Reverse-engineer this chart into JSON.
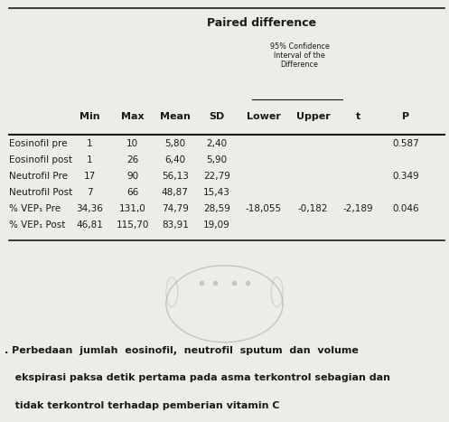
{
  "title": "Paired difference",
  "subtitle": "95% Confidence\nInterval of the\nDifference",
  "col_headers": [
    "Min",
    "Max",
    "Mean",
    "SD",
    "Lower",
    "Upper",
    "t",
    "P"
  ],
  "rows": [
    {
      "label": "Eosinofil pre",
      "vals": [
        "1",
        "10",
        "5,80",
        "2,40",
        "",
        "",
        "",
        "0.587"
      ]
    },
    {
      "label": "Eosinofil post",
      "vals": [
        "1",
        "26",
        "6,40",
        "5,90",
        "",
        "",
        "",
        ""
      ]
    },
    {
      "label": "Neutrofil Pre",
      "vals": [
        "17",
        "90",
        "56,13",
        "22,79",
        "",
        "",
        "",
        "0.349"
      ]
    },
    {
      "label": "Neutrofil Post",
      "vals": [
        "7",
        "66",
        "48,87",
        "15,43",
        "",
        "",
        "",
        ""
      ]
    },
    {
      "label": "% VEP₁ Pre",
      "vals": [
        "34,36",
        "131,0",
        "74,79",
        "28,59",
        "-18,055",
        "-0,182",
        "-2,189",
        "0.046"
      ]
    },
    {
      "label": "% VEP₁ Post",
      "vals": [
        "46,81",
        "115,70",
        "83,91",
        "19,09",
        "",
        "",
        "",
        ""
      ]
    }
  ],
  "bg_color": "#eeece9",
  "table_bg": "#eeece9",
  "text_color": "#1a1a1a",
  "caption_lines": [
    ". Perbedaan  jumlah  eosinofil,  neutrofil  sputum  dan  volume",
    "   ekspirasi paksa detik pertama pada asma terkontrol sebagian dan",
    "   tidak terkontrol terhadap pemberian vitamin C"
  ]
}
